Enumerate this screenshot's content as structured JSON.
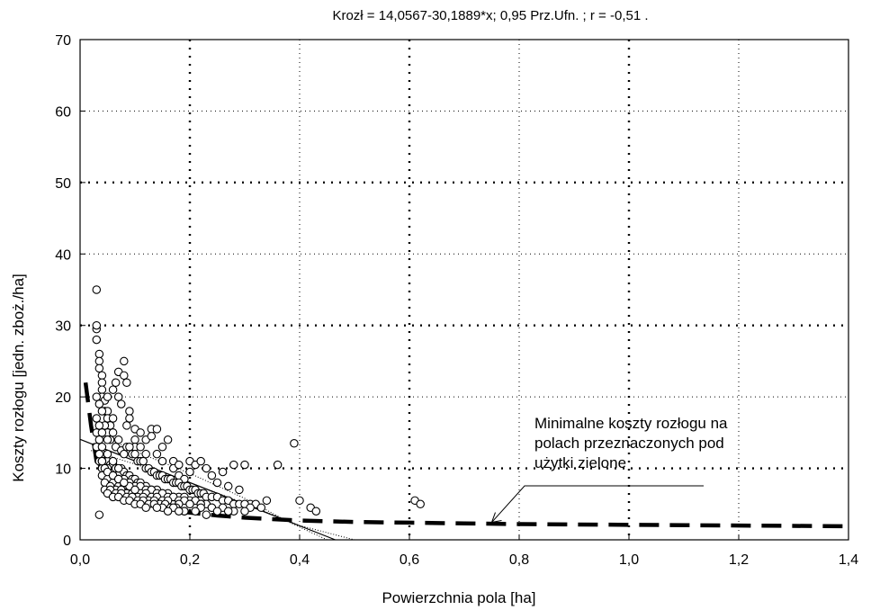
{
  "chart_data": {
    "type": "scatter",
    "title": "Krozł = 14,0567-30,1889*x; 0,95 Prz.Ufn. ; r =  -0,51  .",
    "xlabel": "Powierzchnia pola [ha]",
    "ylabel": "Koszty rozłogu [jedn. zboż./ha]",
    "xlim": [
      0,
      1.4
    ],
    "ylim": [
      0,
      70
    ],
    "x_ticks": [
      0,
      0.2,
      0.4,
      0.6,
      0.8,
      1.0,
      1.2,
      1.4
    ],
    "x_tick_labels": [
      "0,0",
      "0,2",
      "0,4",
      "0,6",
      "0,8",
      "1,0",
      "1,2",
      "1,4"
    ],
    "y_ticks": [
      0,
      10,
      20,
      30,
      40,
      50,
      60,
      70
    ],
    "y_tick_labels": [
      "0",
      "10",
      "20",
      "30",
      "40",
      "50",
      "60",
      "70"
    ],
    "grid": true,
    "regression": {
      "intercept": 14.0567,
      "slope": -30.1889,
      "r": -0.51
    },
    "annotation": {
      "lines": [
        "Minimalne koszty rozłogu na",
        "polach przeznaczonych pod",
        "użytki zielone"
      ],
      "target": [
        0.75,
        2.2
      ]
    },
    "series": [
      {
        "name": "points",
        "x": [
          0.03,
          0.03,
          0.03,
          0.03,
          0.035,
          0.035,
          0.035,
          0.04,
          0.04,
          0.04,
          0.04,
          0.045,
          0.045,
          0.05,
          0.05,
          0.05,
          0.055,
          0.06,
          0.06,
          0.065,
          0.07,
          0.07,
          0.075,
          0.08,
          0.08,
          0.085,
          0.085,
          0.09,
          0.09,
          0.1,
          0.1,
          0.1,
          0.11,
          0.11,
          0.12,
          0.12,
          0.13,
          0.13,
          0.14,
          0.14,
          0.15,
          0.15,
          0.16,
          0.17,
          0.17,
          0.18,
          0.18,
          0.19,
          0.2,
          0.2,
          0.21,
          0.22,
          0.23,
          0.24,
          0.25,
          0.26,
          0.27,
          0.28,
          0.29,
          0.3,
          0.31,
          0.32,
          0.34,
          0.36,
          0.39,
          0.4,
          0.42,
          0.43,
          0.61,
          0.62,
          0.035,
          0.04,
          0.045,
          0.05,
          0.055,
          0.06,
          0.065,
          0.07,
          0.075,
          0.08,
          0.085,
          0.09,
          0.095,
          0.1,
          0.105,
          0.11,
          0.115,
          0.12,
          0.125,
          0.13,
          0.135,
          0.14,
          0.145,
          0.15,
          0.155,
          0.16,
          0.165,
          0.17,
          0.175,
          0.18,
          0.185,
          0.19,
          0.195,
          0.2,
          0.205,
          0.21,
          0.215,
          0.22,
          0.225,
          0.23,
          0.24,
          0.25,
          0.26,
          0.27,
          0.28,
          0.29,
          0.3,
          0.31,
          0.33,
          0.035,
          0.04,
          0.045,
          0.05,
          0.055,
          0.06,
          0.065,
          0.07,
          0.075,
          0.08,
          0.085,
          0.09,
          0.095,
          0.1,
          0.105,
          0.11,
          0.12,
          0.13,
          0.14,
          0.15,
          0.16,
          0.17,
          0.18,
          0.19,
          0.2,
          0.21,
          0.22,
          0.23,
          0.24,
          0.26,
          0.28,
          0.3,
          0.04,
          0.05,
          0.06,
          0.07,
          0.08,
          0.09,
          0.1,
          0.11,
          0.12,
          0.13,
          0.14,
          0.15,
          0.16,
          0.17,
          0.18,
          0.19,
          0.2,
          0.22,
          0.24,
          0.27,
          0.04,
          0.05,
          0.06,
          0.07,
          0.08,
          0.09,
          0.1,
          0.11,
          0.12,
          0.13,
          0.14,
          0.15,
          0.16,
          0.18,
          0.2,
          0.22,
          0.25,
          0.045,
          0.055,
          0.065,
          0.075,
          0.085,
          0.095,
          0.105,
          0.115,
          0.125,
          0.135,
          0.145,
          0.155,
          0.165,
          0.175,
          0.19,
          0.21,
          0.23,
          0.045,
          0.055,
          0.065,
          0.075,
          0.085,
          0.095,
          0.105,
          0.115,
          0.125,
          0.135,
          0.15,
          0.17,
          0.19,
          0.05,
          0.06,
          0.07,
          0.08,
          0.09,
          0.1,
          0.11,
          0.12,
          0.14,
          0.16,
          0.18,
          0.035,
          0.04,
          0.05,
          0.06,
          0.07,
          0.08,
          0.09,
          0.1,
          0.03,
          0.035,
          0.04,
          0.045,
          0.05,
          0.06,
          0.07,
          0.08,
          0.03,
          0.035,
          0.04,
          0.05,
          0.06,
          0.07,
          0.03,
          0.035,
          0.04,
          0.05,
          0.03,
          0.035,
          0.04
        ],
        "y": [
          35,
          29.5,
          30,
          28,
          26,
          25,
          24,
          23,
          22,
          21,
          20,
          19.5,
          18,
          18,
          17,
          20,
          16,
          17,
          21,
          22,
          23.5,
          20,
          19,
          25,
          23,
          22,
          16,
          18,
          17,
          15.5,
          14,
          13,
          13,
          15,
          12,
          14,
          15.5,
          14.5,
          15.5,
          12,
          13,
          11,
          14,
          11,
          10,
          10.5,
          9,
          8.5,
          11,
          9.5,
          10.5,
          11,
          10,
          9,
          8,
          9.5,
          7.5,
          10.5,
          7,
          10.5,
          5,
          5,
          5.5,
          10.5,
          13.5,
          5.5,
          4.5,
          4,
          5.5,
          5,
          3.5,
          10.5,
          16,
          15,
          14,
          15,
          13,
          14,
          12.5,
          12,
          13,
          13,
          12,
          12,
          11,
          11,
          11,
          10,
          10,
          9.5,
          9.5,
          9,
          9,
          9,
          8.5,
          8.5,
          8.5,
          8,
          8,
          8,
          7.5,
          7.5,
          7.5,
          7,
          7,
          7,
          6.5,
          6.5,
          6.5,
          6,
          6,
          6,
          5.5,
          5.5,
          5,
          5,
          5,
          4.5,
          4.5,
          12,
          12,
          11,
          11,
          10.5,
          10.5,
          10,
          10,
          10,
          9.5,
          9,
          9,
          8.5,
          8.5,
          8,
          8,
          7.5,
          7,
          7,
          6.5,
          6.5,
          6,
          6,
          6,
          5.5,
          5.5,
          5,
          5,
          4.5,
          4.5,
          4,
          4,
          10,
          9.5,
          9,
          8.5,
          8.5,
          8,
          7.5,
          7.5,
          7,
          7,
          6.5,
          6.5,
          6,
          6,
          5.5,
          5.5,
          5,
          5,
          4.5,
          4,
          9,
          8.5,
          8,
          7.5,
          7.5,
          7,
          7,
          6.5,
          6.5,
          6,
          6,
          5.5,
          5.5,
          5,
          5,
          4.5,
          4,
          8,
          7.5,
          7,
          7,
          6.5,
          6.5,
          6,
          6,
          5.5,
          5.5,
          5,
          5,
          4.5,
          4.5,
          4,
          4,
          3.5,
          7,
          7,
          6.5,
          6.5,
          6,
          6,
          5.5,
          5.5,
          5,
          5,
          4.5,
          4.5,
          4,
          6.5,
          6,
          6,
          5.5,
          5.5,
          5,
          5,
          4.5,
          4.5,
          4,
          4,
          11,
          11,
          10,
          9,
          8.5,
          8,
          7.5,
          7,
          13,
          12,
          11,
          10,
          9.5,
          9,
          8.5,
          8,
          15,
          14,
          13,
          12,
          11,
          10,
          17,
          16,
          15,
          14,
          20,
          19,
          18
        ]
      }
    ],
    "curves": [
      {
        "name": "regression",
        "style": "thin-solid",
        "x": [
          0,
          0.465
        ],
        "y": [
          14.0567,
          0
        ]
      },
      {
        "name": "lower-confidence",
        "style": "thin-dotted",
        "x": [
          0.02,
          0.1,
          0.2,
          0.3,
          0.4,
          0.5
        ],
        "y": [
          12.5,
          10.6,
          8,
          5.1,
          2,
          0
        ]
      },
      {
        "name": "upper-confidence",
        "style": "thin-dotted",
        "x": [
          0.02,
          0.1,
          0.2,
          0.3,
          0.38,
          0.45
        ],
        "y": [
          15.2,
          12.4,
          9.3,
          5.8,
          2.5,
          0
        ]
      },
      {
        "name": "minimum-cost",
        "style": "thick-dashed",
        "x": [
          0.01,
          0.02,
          0.03,
          0.05,
          0.08,
          0.12,
          0.16,
          0.2,
          0.25,
          0.3,
          0.35,
          0.4,
          0.5,
          0.6,
          0.7,
          0.8,
          1.0,
          1.2,
          1.4
        ],
        "y": [
          22,
          16,
          11,
          8,
          6.2,
          5,
          4.2,
          3.8,
          3.4,
          3.1,
          2.9,
          2.7,
          2.5,
          2.4,
          2.3,
          2.2,
          2.1,
          2,
          1.9
        ]
      }
    ]
  }
}
